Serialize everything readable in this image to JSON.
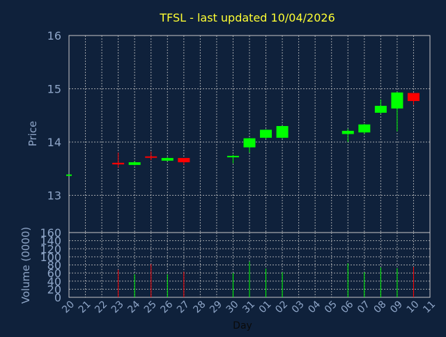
{
  "colors": {
    "background": "#0f213b",
    "title": "#ffff33",
    "axis_text": "#8fa6c8",
    "grid": "#c8c8c8",
    "up": "#00ff00",
    "down": "#ff0000"
  },
  "chart_data": [
    {
      "type": "candlestick",
      "title": "TFSL - last updated 10/04/2026",
      "ylabel": "Price",
      "ylim": [
        12.3,
        16
      ],
      "yticks": [
        "13",
        "14",
        "15",
        "16"
      ],
      "grid": true,
      "days": [
        "20",
        "21",
        "22",
        "23",
        "24",
        "25",
        "26",
        "27",
        "28",
        "29",
        "30",
        "31",
        "01",
        "02",
        "03",
        "04",
        "05",
        "06",
        "07",
        "08",
        "09",
        "10",
        "11"
      ],
      "candles": [
        {
          "day": "20",
          "open": 13.39,
          "close": 13.39,
          "high": 13.39,
          "low": 13.39
        },
        {
          "day": "23",
          "open": 13.61,
          "close": 13.58,
          "high": 13.8,
          "low": 13.52
        },
        {
          "day": "24",
          "open": 13.57,
          "close": 13.62,
          "high": 13.64,
          "low": 13.56
        },
        {
          "day": "25",
          "open": 13.73,
          "close": 13.71,
          "high": 13.82,
          "low": 13.66
        },
        {
          "day": "26",
          "open": 13.65,
          "close": 13.7,
          "high": 13.72,
          "low": 13.64
        },
        {
          "day": "27",
          "open": 13.7,
          "close": 13.62,
          "high": 13.7,
          "low": 13.57
        },
        {
          "day": "30",
          "open": 13.73,
          "close": 13.74,
          "high": 13.76,
          "low": 13.6
        },
        {
          "day": "31",
          "open": 13.9,
          "close": 14.07,
          "high": 14.08,
          "low": 13.8
        },
        {
          "day": "01",
          "open": 14.08,
          "close": 14.23,
          "high": 14.24,
          "low": 14.06
        },
        {
          "day": "02",
          "open": 14.08,
          "close": 14.3,
          "high": 14.31,
          "low": 14.07
        },
        {
          "day": "06",
          "open": 14.15,
          "close": 14.21,
          "high": 14.25,
          "low": 14.0
        },
        {
          "day": "07",
          "open": 14.18,
          "close": 14.33,
          "high": 14.34,
          "low": 14.15
        },
        {
          "day": "08",
          "open": 14.55,
          "close": 14.68,
          "high": 14.8,
          "low": 14.53
        },
        {
          "day": "09",
          "open": 14.63,
          "close": 14.93,
          "high": 14.94,
          "low": 14.2
        },
        {
          "day": "10",
          "open": 14.92,
          "close": 14.77,
          "high": 14.92,
          "low": 14.7
        }
      ]
    },
    {
      "type": "bar",
      "ylabel": "Volume (0000)",
      "xlabel": "Day",
      "ylim": [
        0,
        160
      ],
      "yticks": [
        "0",
        "20",
        "40",
        "60",
        "80",
        "100",
        "120",
        "140",
        "160"
      ],
      "grid": true,
      "bars": [
        {
          "day": "23",
          "value": 68,
          "direction": "down"
        },
        {
          "day": "24",
          "value": 57,
          "direction": "up"
        },
        {
          "day": "25",
          "value": 82,
          "direction": "down"
        },
        {
          "day": "26",
          "value": 57,
          "direction": "up"
        },
        {
          "day": "27",
          "value": 63,
          "direction": "down"
        },
        {
          "day": "30",
          "value": 60,
          "direction": "up"
        },
        {
          "day": "31",
          "value": 88,
          "direction": "up"
        },
        {
          "day": "01",
          "value": 71,
          "direction": "up"
        },
        {
          "day": "02",
          "value": 62,
          "direction": "up"
        },
        {
          "day": "06",
          "value": 84,
          "direction": "up"
        },
        {
          "day": "07",
          "value": 62,
          "direction": "up"
        },
        {
          "day": "08",
          "value": 74,
          "direction": "up"
        },
        {
          "day": "09",
          "value": 72,
          "direction": "up"
        },
        {
          "day": "10",
          "value": 75,
          "direction": "down"
        }
      ]
    }
  ]
}
